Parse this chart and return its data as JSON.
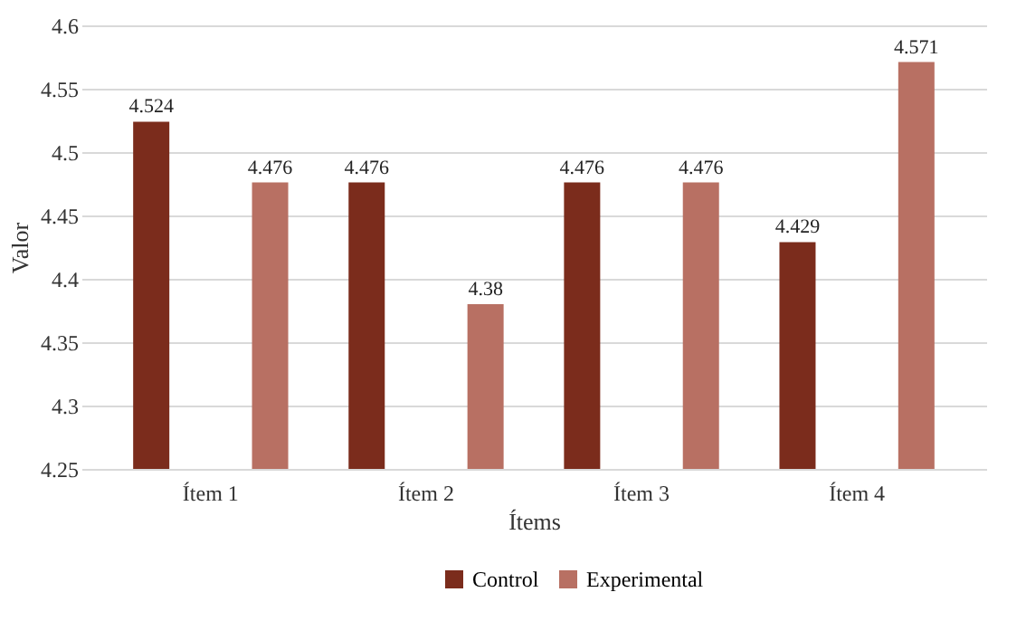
{
  "chart_data": {
    "type": "bar",
    "xlabel": "Ítems",
    "ylabel": "Valor",
    "categories": [
      "Ítem 1",
      "Ítem 2",
      "Ítem 3",
      "Ítem 4"
    ],
    "series": [
      {
        "name": "Control",
        "color": "#7b2c1c",
        "values": [
          4.524,
          4.476,
          4.476,
          4.429
        ]
      },
      {
        "name": "Experimental",
        "color": "#b87063",
        "values": [
          4.476,
          4.38,
          4.476,
          4.571
        ]
      }
    ],
    "ylim": [
      4.25,
      4.6
    ],
    "yticks": [
      4.25,
      4.3,
      4.35,
      4.4,
      4.45,
      4.5,
      4.55,
      4.6
    ],
    "grid": "y",
    "legend": "bottom",
    "data_labels": true
  }
}
